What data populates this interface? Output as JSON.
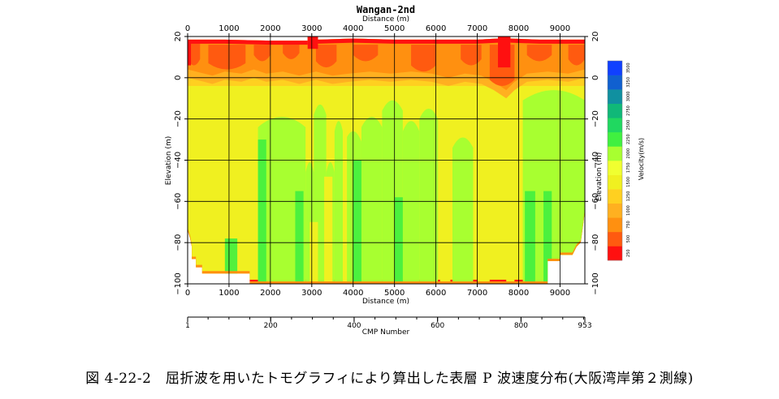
{
  "chart_data": {
    "type": "heatmap",
    "title": "Wangan-2nd",
    "x_axis_top_label": "Distance (m)",
    "x_axis_bottom_label": "Distance (m)",
    "ylabel_left": "Elevation (m)",
    "ylabel_right": "Elevation (m)",
    "xlim": [
      0,
      9600
    ],
    "ylim": [
      -100,
      20
    ],
    "x_ticks": [
      0,
      1000,
      2000,
      3000,
      4000,
      5000,
      6000,
      7000,
      8000,
      9000
    ],
    "y_ticks": [
      20,
      0,
      -20,
      -40,
      -60,
      -80,
      -100
    ],
    "cmp_axis": {
      "label": "CMP Number",
      "ticks": [
        1,
        200,
        400,
        600,
        800,
        953
      ],
      "range": [
        1,
        953
      ]
    },
    "colorbar": {
      "label": "Velocity(m/s)",
      "ticks": [
        250,
        500,
        750,
        1000,
        1250,
        1500,
        1750,
        2000,
        2250,
        2500,
        2750,
        3000,
        3250,
        3500
      ],
      "colors": [
        "#ff1010",
        "#ff5a10",
        "#ff9010",
        "#ffb020",
        "#ffd020",
        "#f0f020",
        "#f0ff30",
        "#a8ff30",
        "#40f040",
        "#20d860",
        "#10b878",
        "#1090a0",
        "#1060d0",
        "#1040ff"
      ]
    },
    "surface": [
      [
        0,
        18.5
      ],
      [
        900,
        18.5
      ],
      [
        2000,
        18
      ],
      [
        2900,
        18
      ],
      [
        2900,
        20
      ],
      [
        3150,
        20
      ],
      [
        3150,
        18.5
      ],
      [
        4000,
        19
      ],
      [
        5000,
        18.5
      ],
      [
        6000,
        18.5
      ],
      [
        7000,
        18.5
      ],
      [
        7500,
        19
      ],
      [
        7500,
        20
      ],
      [
        7800,
        20
      ],
      [
        7800,
        19
      ],
      [
        8500,
        18.5
      ],
      [
        9600,
        18.5
      ]
    ],
    "bottom_boundary": [
      [
        0,
        -74
      ],
      [
        60,
        -78
      ],
      [
        100,
        -82
      ],
      [
        100,
        -88
      ],
      [
        200,
        -88
      ],
      [
        200,
        -92
      ],
      [
        350,
        -92
      ],
      [
        350,
        -95
      ],
      [
        1500,
        -95
      ],
      [
        1500,
        -100
      ],
      [
        8700,
        -100
      ],
      [
        8700,
        -89
      ],
      [
        9000,
        -89
      ],
      [
        9000,
        -86
      ],
      [
        9300,
        -86
      ],
      [
        9400,
        -82
      ],
      [
        9500,
        -80
      ],
      [
        9600,
        -65
      ]
    ],
    "velocity_layers": [
      {
        "velocity_range": "250-500",
        "top": 18,
        "bottom": 16
      },
      {
        "velocity_range": "500-1250",
        "top": 16,
        "bottom": 0
      },
      {
        "velocity_range": "1250-1500",
        "top": 0,
        "bottom": -4
      },
      {
        "velocity_range": "1500-1750",
        "top": -4,
        "bottom": -100
      },
      {
        "velocity_range": "1750-2250",
        "zones_x": [
          [
            1700,
            2800
          ],
          [
            3200,
            3800
          ],
          [
            3900,
            6100
          ],
          [
            6400,
            6900
          ],
          [
            8100,
            9600
          ]
        ],
        "top": -15,
        "bottom": -100
      }
    ]
  },
  "caption": "図 4-22-2　屈折波を用いたトモグラフィにより算出した表層 P 波速度分布(大阪湾岸第２測線)"
}
